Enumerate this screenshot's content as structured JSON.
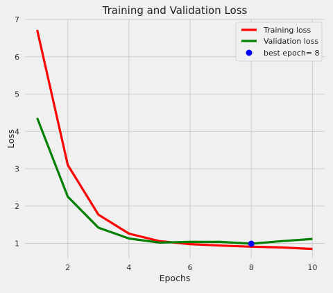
{
  "chart_data": {
    "type": "line",
    "title": "Training and Validation Loss",
    "xlabel": "Epochs",
    "ylabel": "Loss",
    "xlim": [
      0.6,
      10.4
    ],
    "ylim": [
      0.6,
      7.0
    ],
    "xticks": [
      2,
      4,
      6,
      8,
      10
    ],
    "yticks": [
      1,
      2,
      3,
      4,
      5,
      6,
      7
    ],
    "grid": true,
    "legend_position": "top-right",
    "x": [
      1,
      2,
      3,
      4,
      5,
      6,
      7,
      8,
      9,
      10
    ],
    "series": [
      {
        "name": "Training loss",
        "color": "#ff0000",
        "values": [
          6.72,
          3.1,
          1.77,
          1.26,
          1.06,
          0.98,
          0.94,
          0.91,
          0.89,
          0.85
        ]
      },
      {
        "name": "Validation loss",
        "color": "#008000",
        "values": [
          4.36,
          2.25,
          1.42,
          1.13,
          1.02,
          1.04,
          1.04,
          0.99,
          1.06,
          1.12
        ]
      }
    ],
    "highlight_point": {
      "label": "best epoch= 8",
      "x": 8,
      "y": 0.99,
      "color": "#0000ff"
    }
  }
}
